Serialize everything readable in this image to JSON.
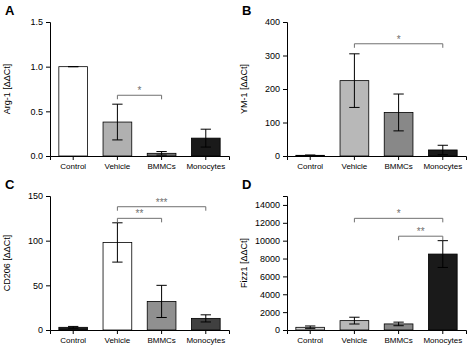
{
  "chart_data": [
    {
      "type": "bar",
      "title": "A",
      "ylabel": "Arg-1 [ΔΔCt]",
      "categories": [
        "Control",
        "Vehicle",
        "BMMCs",
        "Monocytes"
      ],
      "values": [
        1.0,
        0.38,
        0.03,
        0.2
      ],
      "errors": [
        0.0,
        0.2,
        0.02,
        0.1
      ],
      "colors": [
        "#ffffff",
        "#b0b0b0",
        "#707070",
        "#1a1a1a"
      ],
      "ylim": [
        0,
        1.5
      ],
      "yticks": [
        {
          "value": 0,
          "label": "0.0"
        },
        0.5,
        {
          "value": 1,
          "label": "1.0"
        },
        1.5
      ],
      "grid": false,
      "annotations": [
        {
          "x1": "Vehicle",
          "x2": "BMMCs",
          "y": 0.68,
          "label": "*",
          "color": "#707070"
        }
      ]
    },
    {
      "type": "bar",
      "title": "B",
      "ylabel": "YM-1 [ΔΔCt]",
      "categories": [
        "Control",
        "Vehicle",
        "BMMCs",
        "Monocytes"
      ],
      "values": [
        2,
        225,
        130,
        18
      ],
      "errors": [
        1,
        80,
        55,
        14
      ],
      "colors": [
        "#1a1a1a",
        "#b8b8b8",
        "#888888",
        "#1a1a1a"
      ],
      "ylim": [
        0,
        400
      ],
      "yticks": [
        0,
        100,
        200,
        300,
        400
      ],
      "grid": false,
      "annotations": [
        {
          "x1": "Vehicle",
          "x2": "Monocytes",
          "y": 335,
          "label": "*",
          "color": "#707070"
        }
      ]
    },
    {
      "type": "bar",
      "title": "C",
      "ylabel": "CD206 [ΔΔCt]",
      "categories": [
        "Control",
        "Vehicle",
        "BMMCs",
        "Monocytes"
      ],
      "values": [
        3,
        98,
        32,
        13
      ],
      "errors": [
        1,
        22,
        18,
        4
      ],
      "colors": [
        "#1a1a1a",
        "#ffffff",
        "#909090",
        "#404040"
      ],
      "ylim": [
        0,
        150
      ],
      "yticks": [
        0,
        50,
        100,
        150
      ],
      "grid": false,
      "annotations": [
        {
          "x1": "Vehicle",
          "x2": "BMMCs",
          "y": 125,
          "label": "**",
          "color": "#707070"
        },
        {
          "x1": "Vehicle",
          "x2": "Monocytes",
          "y": 138,
          "label": "***",
          "color": "#707070"
        }
      ]
    },
    {
      "type": "bar",
      "title": "D",
      "ylabel": "Fizz1 [ΔΔCt]",
      "categories": [
        "Control",
        "Vehicle",
        "BMMCs",
        "Monocytes"
      ],
      "values": [
        300,
        1050,
        680,
        8500
      ],
      "errors": [
        150,
        380,
        200,
        1500
      ],
      "colors": [
        "#d0d0d0",
        "#b8b8b8",
        "#888888",
        "#1a1a1a"
      ],
      "ylim": [
        0,
        15000
      ],
      "yticks": [
        0,
        2000,
        4000,
        6000,
        8000,
        10000,
        12000,
        14000
      ],
      "grid": false,
      "annotations": [
        {
          "x1": "Vehicle",
          "x2": "Monocytes",
          "y": 12500,
          "label": "*",
          "color": "#707070"
        },
        {
          "x1": "BMMCs",
          "x2": "Monocytes",
          "y": 10500,
          "label": "**",
          "color": "#707070"
        }
      ]
    }
  ]
}
